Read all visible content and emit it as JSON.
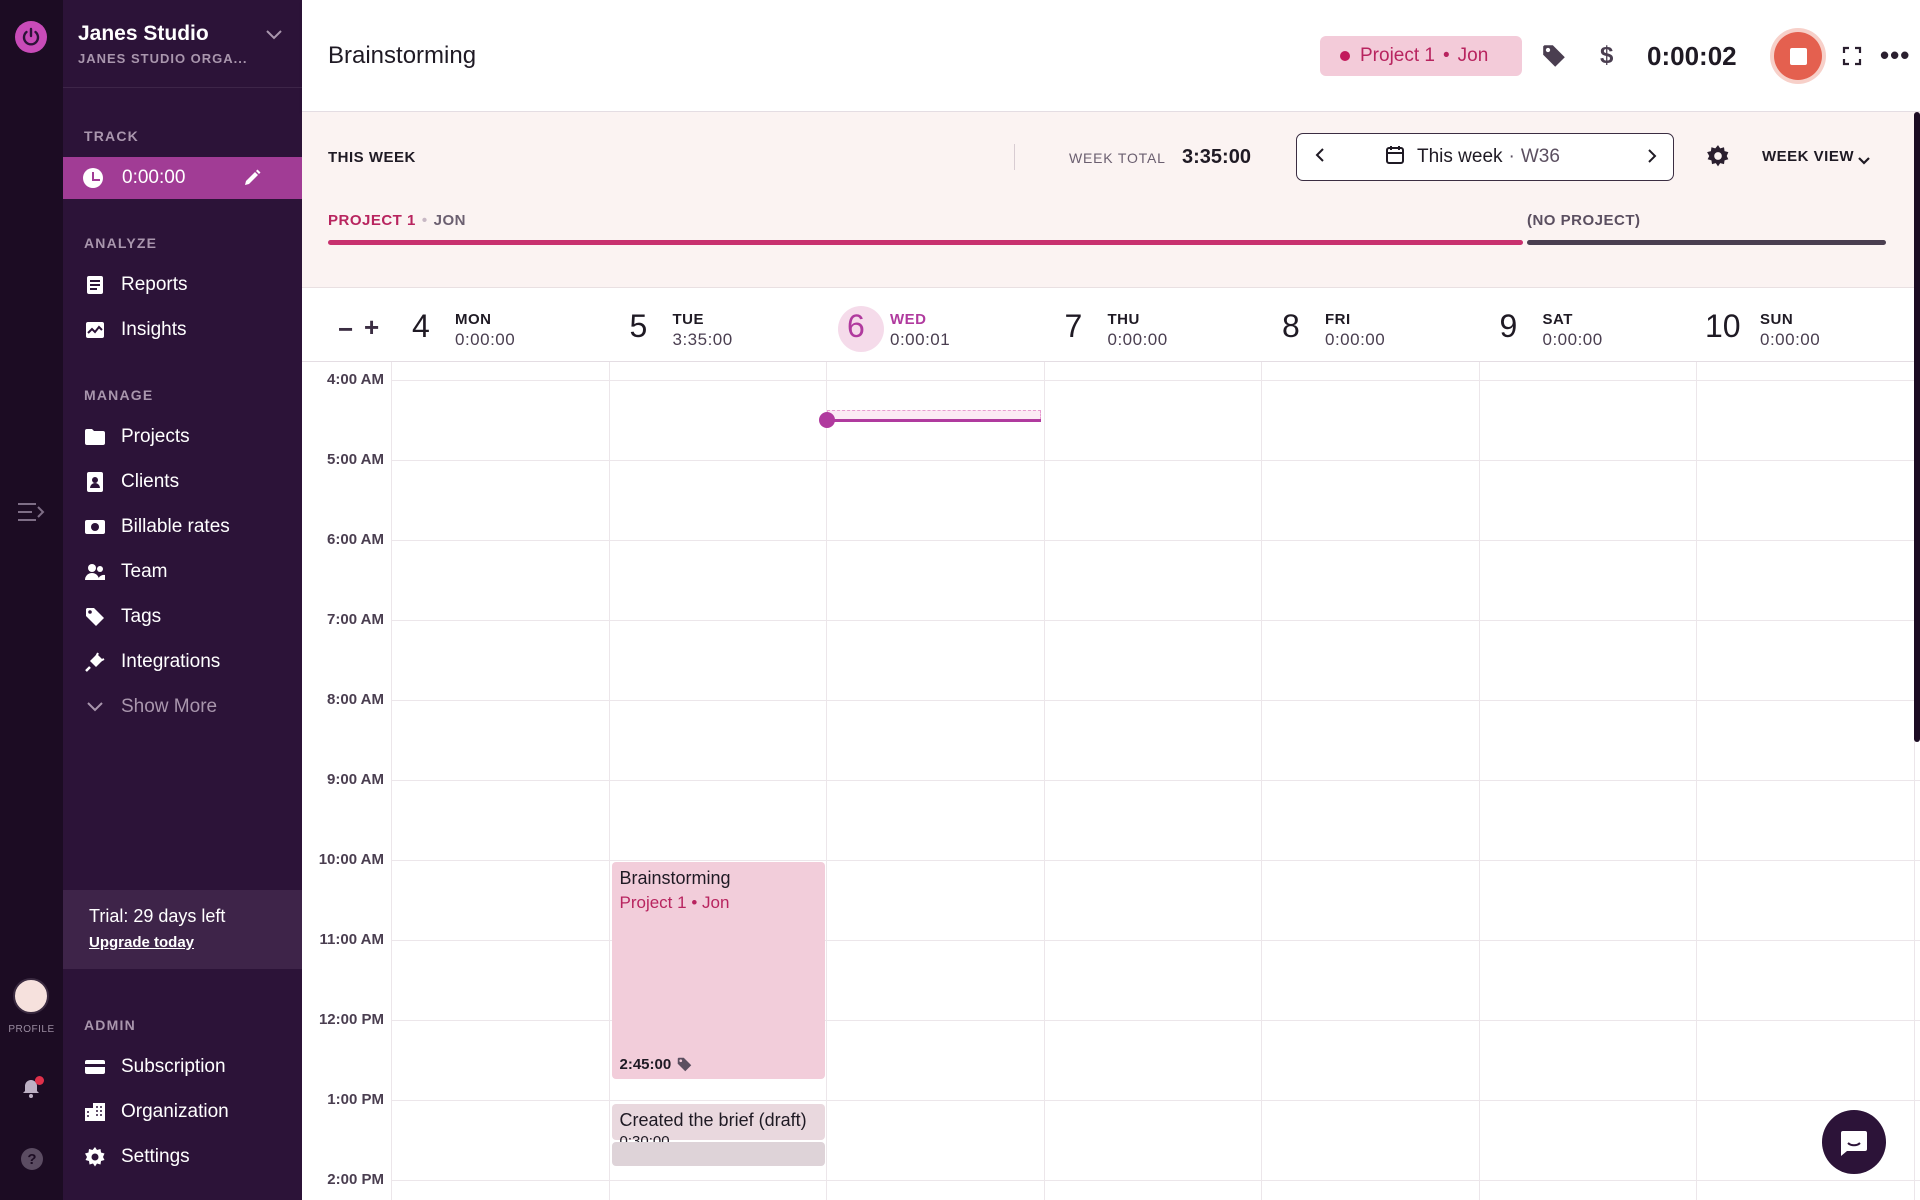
{
  "workspace": {
    "name": "Janes Studio",
    "org": "JANES STUDIO ORGA..."
  },
  "rail": {
    "profile_label": "PROFILE",
    "help": "?"
  },
  "sidebar": {
    "track_label": "TRACK",
    "track_time": "0:00:00",
    "analyze_label": "ANALYZE",
    "analyze_items": [
      {
        "label": "Reports",
        "icon": "reports-icon"
      },
      {
        "label": "Insights",
        "icon": "insights-icon"
      }
    ],
    "manage_label": "MANAGE",
    "manage_items": [
      {
        "label": "Projects",
        "icon": "folder-icon"
      },
      {
        "label": "Clients",
        "icon": "client-icon"
      },
      {
        "label": "Billable rates",
        "icon": "billable-icon"
      },
      {
        "label": "Team",
        "icon": "team-icon"
      },
      {
        "label": "Tags",
        "icon": "tag-icon"
      },
      {
        "label": "Integrations",
        "icon": "plug-icon"
      },
      {
        "label": "Show More",
        "icon": "chevron-down-icon"
      }
    ],
    "trial": {
      "text": "Trial: 29 days left",
      "link": "Upgrade today"
    },
    "admin_label": "ADMIN",
    "admin_items": [
      {
        "label": "Subscription",
        "icon": "card-icon"
      },
      {
        "label": "Organization",
        "icon": "building-icon"
      },
      {
        "label": "Settings",
        "icon": "gear-icon"
      }
    ]
  },
  "header": {
    "title": "Brainstorming",
    "project": "Project 1",
    "client": "Jon",
    "separator": "•",
    "dollar": "$",
    "timer": "0:00:02",
    "more": "•••"
  },
  "summary": {
    "this_week": "THIS WEEK",
    "week_total_label": "WEEK TOTAL",
    "week_total": "3:35:00",
    "week_label": "This week",
    "week_sep": "·",
    "week_number": "W36",
    "view_label": "WEEK VIEW",
    "bars": [
      {
        "project": "PROJECT 1",
        "client": "JON",
        "fraction": 0.767,
        "color": "#c8306e"
      },
      {
        "project": "(NO PROJECT)",
        "client": "",
        "fraction": 0.233,
        "color": "#4a3e50"
      }
    ]
  },
  "calendar": {
    "zoom_out": "−",
    "zoom_in": "+",
    "days": [
      {
        "num": "4",
        "name": "MON",
        "time": "0:00:00"
      },
      {
        "num": "5",
        "name": "TUE",
        "time": "3:35:00"
      },
      {
        "num": "6",
        "name": "WED",
        "time": "0:00:01",
        "today": true
      },
      {
        "num": "7",
        "name": "THU",
        "time": "0:00:00"
      },
      {
        "num": "8",
        "name": "FRI",
        "time": "0:00:00"
      },
      {
        "num": "9",
        "name": "SAT",
        "time": "0:00:00"
      },
      {
        "num": "10",
        "name": "SUN",
        "time": "0:00:00"
      }
    ],
    "hours": [
      "4:00 AM",
      "5:00 AM",
      "6:00 AM",
      "7:00 AM",
      "8:00 AM",
      "9:00 AM",
      "10:00 AM",
      "11:00 AM",
      "12:00 PM",
      "1:00 PM",
      "2:00 PM"
    ],
    "entries": [
      {
        "title": "Brainstorming",
        "project": "Project 1",
        "client": "Jon",
        "duration": "2:45:00"
      },
      {
        "title": "Created the brief (draft)",
        "duration": "0:30:00"
      }
    ]
  }
}
